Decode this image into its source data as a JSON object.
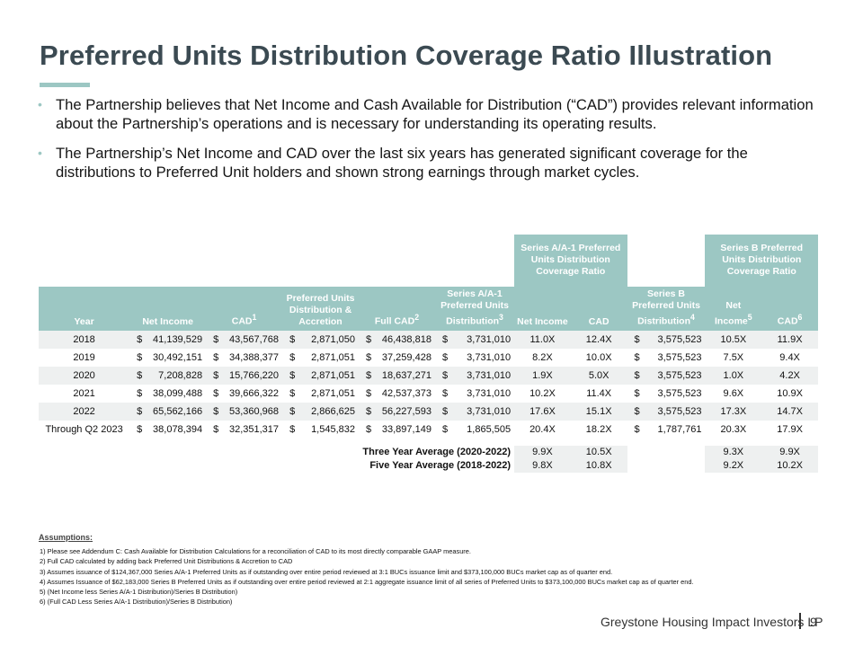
{
  "title": "Preferred Units Distribution Coverage Ratio Illustration",
  "bullets": [
    "The Partnership believes that Net Income and Cash Available for Distribution (“CAD”) provides relevant information about the Partnership’s operations and is necessary for understanding its operating results.",
    "The Partnership’s Net Income and CAD over the last six years has generated significant coverage for the distributions to Preferred Unit holders and shown strong earnings through market cycles."
  ],
  "table": {
    "group_headers": {
      "series_a": "Series A/A-1 Preferred Units Distribution Coverage Ratio",
      "series_b": "Series B Preferred Units Distribution Coverage Ratio"
    },
    "headers": {
      "year": "Year",
      "net_income": "Net Income",
      "cad": "CAD",
      "cad_sup": "1",
      "pref_dist": "Preferred Units Distribution & Accretion",
      "full_cad": "Full CAD",
      "full_cad_sup": "2",
      "series_a_dist": "Series A/A-1 Preferred Units Distribution",
      "series_a_dist_sup": "3",
      "a_net_income": "Net Income",
      "a_cad": "CAD",
      "series_b_dist": "Series B Preferred Units Distribution",
      "series_b_dist_sup": "4",
      "b_net_income": "Net Income",
      "b_net_income_sup": "5",
      "b_cad": "CAD",
      "b_cad_sup": "6"
    },
    "currency": "$",
    "rows": [
      {
        "year": "2018",
        "net_income": "41,139,529",
        "cad": "43,567,768",
        "pref_dist": "2,871,050",
        "full_cad": "46,438,818",
        "series_a_dist": "3,731,010",
        "a_ni": "11.0X",
        "a_cad": "12.4X",
        "series_b_dist": "3,575,523",
        "b_ni": "10.5X",
        "b_cad": "11.9X"
      },
      {
        "year": "2019",
        "net_income": "30,492,151",
        "cad": "34,388,377",
        "pref_dist": "2,871,051",
        "full_cad": "37,259,428",
        "series_a_dist": "3,731,010",
        "a_ni": "8.2X",
        "a_cad": "10.0X",
        "series_b_dist": "3,575,523",
        "b_ni": "7.5X",
        "b_cad": "9.4X"
      },
      {
        "year": "2020",
        "net_income": "7,208,828",
        "cad": "15,766,220",
        "pref_dist": "2,871,051",
        "full_cad": "18,637,271",
        "series_a_dist": "3,731,010",
        "a_ni": "1.9X",
        "a_cad": "5.0X",
        "series_b_dist": "3,575,523",
        "b_ni": "1.0X",
        "b_cad": "4.2X"
      },
      {
        "year": "2021",
        "net_income": "38,099,488",
        "cad": "39,666,322",
        "pref_dist": "2,871,051",
        "full_cad": "42,537,373",
        "series_a_dist": "3,731,010",
        "a_ni": "10.2X",
        "a_cad": "11.4X",
        "series_b_dist": "3,575,523",
        "b_ni": "9.6X",
        "b_cad": "10.9X"
      },
      {
        "year": "2022",
        "net_income": "65,562,166",
        "cad": "53,360,968",
        "pref_dist": "2,866,625",
        "full_cad": "56,227,593",
        "series_a_dist": "3,731,010",
        "a_ni": "17.6X",
        "a_cad": "15.1X",
        "series_b_dist": "3,575,523",
        "b_ni": "17.3X",
        "b_cad": "14.7X"
      },
      {
        "year": "Through Q2 2023",
        "net_income": "38,078,394",
        "cad": "32,351,317",
        "pref_dist": "1,545,832",
        "full_cad": "33,897,149",
        "series_a_dist": "1,865,505",
        "a_ni": "20.4X",
        "a_cad": "18.2X",
        "series_b_dist": "1,787,761",
        "b_ni": "20.3X",
        "b_cad": "17.9X"
      }
    ],
    "averages": [
      {
        "label": "Three Year Average (2020-2022)",
        "a_ni": "9.9X",
        "a_cad": "10.5X",
        "b_ni": "9.3X",
        "b_cad": "9.9X"
      },
      {
        "label": "Five Year Average (2018-2022)",
        "a_ni": "9.8X",
        "a_cad": "10.8X",
        "b_ni": "9.2X",
        "b_cad": "10.2X"
      }
    ]
  },
  "assumptions": {
    "title": "Assumptions:",
    "notes": [
      "1) Please see Addendum C: Cash Available for Distribution Calculations for a reconciliation of CAD to its most directly comparable GAAP measure.",
      "2) Full CAD calculated by adding back Preferred Unit Distributions & Accretion to CAD",
      "3) Assumes issuance of $124,367,000 Series A/A-1 Preferred Units as if outstanding over entire period reviewed at 3:1 BUCs issuance limit and $373,100,000 BUCs market cap as of quarter end.",
      "4) Assumes Issuance of $62,183,000 Series B Preferred Units as if outstanding over entire period reviewed at 2:1 aggregate issuance limit of all series of Preferred Units to $373,100,000 BUCs market cap as of quarter end.",
      "5) (Net Income less Series A/A-1 Distribution)/Series B Distribution)",
      "6) (Full CAD Less Series A/A-1 Distribution)/Series B Distribution)"
    ]
  },
  "footer": {
    "company": "Greystone Housing Impact Investors LP",
    "page_number": "9"
  },
  "colors": {
    "title": "#3b4a52",
    "accent": "#9cc7c3",
    "row_shade": "#eef0f0"
  }
}
